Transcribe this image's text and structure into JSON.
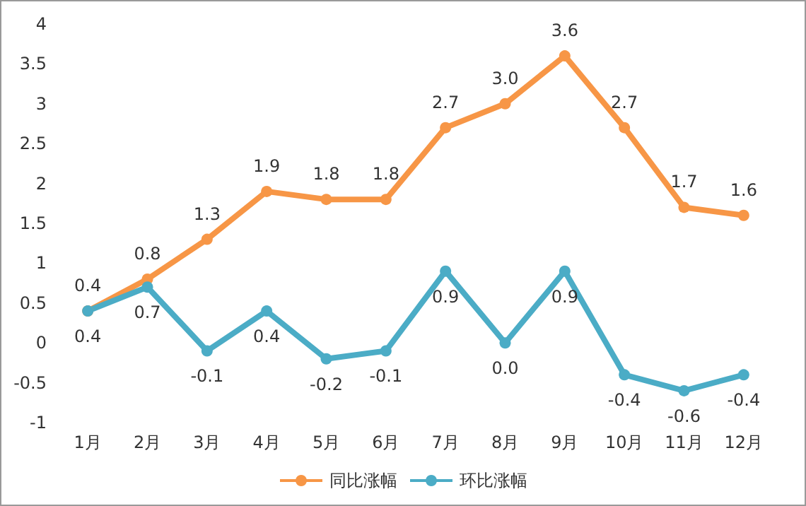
{
  "chart_data": {
    "type": "line",
    "categories": [
      "1月",
      "2月",
      "3月",
      "4月",
      "5月",
      "6月",
      "7月",
      "8月",
      "9月",
      "10月",
      "11月",
      "12月"
    ],
    "series": [
      {
        "name": "同比涨幅",
        "color": "#f79646",
        "values": [
          0.4,
          0.8,
          1.3,
          1.9,
          1.8,
          1.8,
          2.7,
          3.0,
          3.6,
          2.7,
          1.7,
          1.6
        ],
        "value_labels": [
          "0.4",
          "0.8",
          "1.3",
          "1.9",
          "1.8",
          "1.8",
          "2.7",
          "3.0",
          "3.6",
          "2.7",
          "1.7",
          "1.6"
        ]
      },
      {
        "name": "环比涨幅",
        "color": "#4bacc6",
        "values": [
          0.4,
          0.7,
          -0.1,
          0.4,
          -0.2,
          -0.1,
          0.9,
          0.0,
          0.9,
          -0.4,
          -0.6,
          -0.4
        ],
        "value_labels": [
          "0.4",
          "0.7",
          "-0.1",
          "0.4",
          "-0.2",
          "-0.1",
          "0.9",
          "0.0",
          "0.9",
          "-0.4",
          "-0.6",
          "-0.4"
        ]
      }
    ],
    "ylim": [
      -1,
      4
    ],
    "yticks": [
      -1,
      -0.5,
      0,
      0.5,
      1,
      1.5,
      2,
      2.5,
      3,
      3.5,
      4
    ],
    "grid": false,
    "legend": "bottom",
    "marker": "circle",
    "line_style": "solid"
  }
}
